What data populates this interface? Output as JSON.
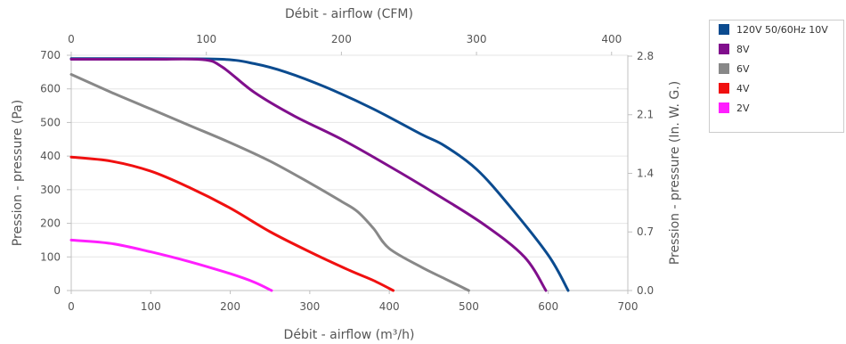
{
  "chart_data": {
    "type": "line",
    "xlabel": "Débit - airflow (m³/h)",
    "x2label": "Débit - airflow (CFM)",
    "ylabel": "Pression - pressure (Pa)",
    "y2label": "Pression - pressure (In. W. G.)",
    "xlim": [
      0,
      700
    ],
    "ylim": [
      0,
      700
    ],
    "x_ticks": [
      "0",
      "100",
      "200",
      "300",
      "400",
      "500",
      "600",
      "700"
    ],
    "y_ticks": [
      "0",
      "100",
      "200",
      "300",
      "400",
      "500",
      "600",
      "700"
    ],
    "x2_ticks": [
      "0",
      "100",
      "200",
      "300",
      "400"
    ],
    "x2_tick_values": [
      0,
      100,
      200,
      300,
      400
    ],
    "x2_unit_per_x": 0.5886,
    "y2_ticks": [
      "0.0",
      "0.7",
      "1.4",
      "2.1",
      "2.8"
    ],
    "y2_tick_values": [
      0,
      0.7,
      1.4,
      2.1,
      2.8
    ],
    "y2_unit_per_y": 0.004015,
    "grid": true,
    "legend_position": "top-right",
    "series": [
      {
        "name": "120V 50/60Hz 10V",
        "color": "#0b4b8f",
        "points": [
          [
            0,
            690
          ],
          [
            100,
            690
          ],
          [
            190,
            688
          ],
          [
            230,
            675
          ],
          [
            270,
            650
          ],
          [
            320,
            605
          ],
          [
            380,
            540
          ],
          [
            440,
            465
          ],
          [
            470,
            430
          ],
          [
            510,
            360
          ],
          [
            550,
            255
          ],
          [
            600,
            105
          ],
          [
            625,
            0
          ]
        ]
      },
      {
        "name": "8V",
        "color": "#800f8c",
        "points": [
          [
            0,
            688
          ],
          [
            100,
            688
          ],
          [
            165,
            687
          ],
          [
            190,
            665
          ],
          [
            230,
            590
          ],
          [
            280,
            520
          ],
          [
            340,
            450
          ],
          [
            400,
            370
          ],
          [
            460,
            285
          ],
          [
            520,
            195
          ],
          [
            570,
            100
          ],
          [
            597,
            0
          ]
        ]
      },
      {
        "name": "6V",
        "color": "#888888",
        "points": [
          [
            0,
            643
          ],
          [
            50,
            590
          ],
          [
            100,
            540
          ],
          [
            150,
            490
          ],
          [
            200,
            440
          ],
          [
            250,
            385
          ],
          [
            300,
            320
          ],
          [
            340,
            265
          ],
          [
            360,
            235
          ],
          [
            380,
            185
          ],
          [
            400,
            125
          ],
          [
            440,
            70
          ],
          [
            470,
            35
          ],
          [
            500,
            0
          ]
        ]
      },
      {
        "name": "4V",
        "color": "#f01010",
        "points": [
          [
            0,
            397
          ],
          [
            50,
            385
          ],
          [
            100,
            355
          ],
          [
            150,
            305
          ],
          [
            200,
            245
          ],
          [
            250,
            175
          ],
          [
            300,
            115
          ],
          [
            350,
            60
          ],
          [
            380,
            30
          ],
          [
            405,
            0
          ]
        ]
      },
      {
        "name": "2V",
        "color": "#ff1fff",
        "points": [
          [
            0,
            150
          ],
          [
            50,
            140
          ],
          [
            100,
            115
          ],
          [
            150,
            85
          ],
          [
            200,
            50
          ],
          [
            230,
            25
          ],
          [
            252,
            0
          ]
        ]
      }
    ]
  }
}
